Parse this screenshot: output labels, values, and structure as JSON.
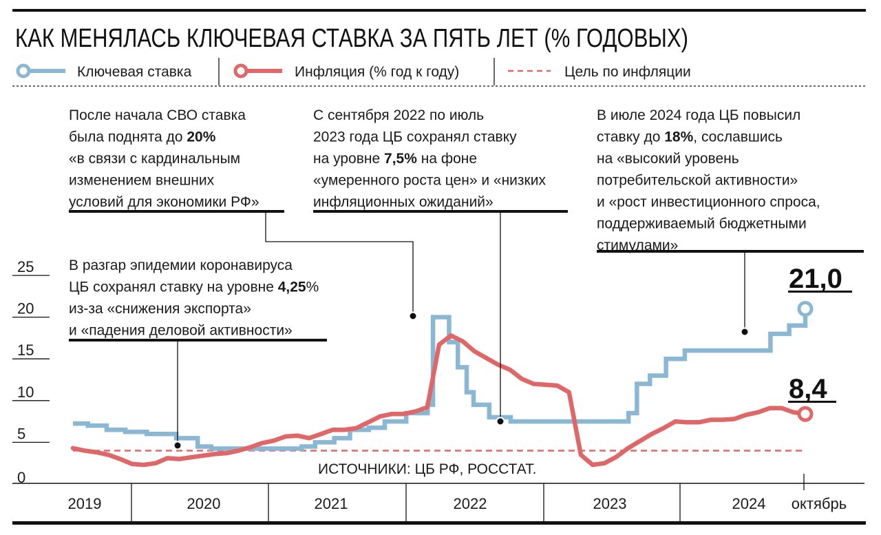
{
  "chart_data": {
    "type": "line",
    "title": "КАК МЕНЯЛАСЬ КЛЮЧЕВАЯ СТАВКА ЗА ПЯТЬ ЛЕТ (% ГОДОВЫХ)",
    "xlabel": "",
    "ylabel": "% годовых",
    "ylim": [
      0,
      25
    ],
    "xlim": [
      "2019-08-01",
      "2024-10-28"
    ],
    "y_ticks": [
      "25",
      "20",
      "15",
      "10",
      "5",
      "0"
    ],
    "x_ticks": [
      "2019",
      "2020",
      "2021",
      "2022",
      "2023",
      "2024",
      "октябрь"
    ],
    "legend": {
      "placement": "top",
      "items": [
        {
          "label": "Ключевая ставка",
          "color": "#8ab8d4"
        },
        {
          "label": "Инфляция (% год к году)",
          "color": "#e06767"
        },
        {
          "label": "Цель по инфляции",
          "color": "#e06767"
        }
      ]
    },
    "series": [
      {
        "name": "Ключевая ставка",
        "kind": "step",
        "color": "#8ab8d4",
        "points": [
          [
            "2019-08-01",
            7.25
          ],
          [
            "2019-09-09",
            7.0
          ],
          [
            "2019-10-28",
            6.5
          ],
          [
            "2019-12-16",
            6.25
          ],
          [
            "2020-02-10",
            6.0
          ],
          [
            "2020-04-27",
            5.5
          ],
          [
            "2020-06-22",
            4.5
          ],
          [
            "2020-07-27",
            4.25
          ],
          [
            "2021-03-22",
            4.5
          ],
          [
            "2021-04-26",
            5.0
          ],
          [
            "2021-06-15",
            5.5
          ],
          [
            "2021-07-26",
            6.5
          ],
          [
            "2021-09-13",
            6.75
          ],
          [
            "2021-10-25",
            7.5
          ],
          [
            "2021-12-20",
            8.5
          ],
          [
            "2022-02-14",
            9.5
          ],
          [
            "2022-02-28",
            20.0
          ],
          [
            "2022-04-11",
            17.0
          ],
          [
            "2022-05-04",
            14.0
          ],
          [
            "2022-05-27",
            11.0
          ],
          [
            "2022-06-14",
            9.5
          ],
          [
            "2022-07-25",
            8.0
          ],
          [
            "2022-09-19",
            7.5
          ],
          [
            "2023-07-24",
            8.5
          ],
          [
            "2023-08-15",
            12.0
          ],
          [
            "2023-09-18",
            13.0
          ],
          [
            "2023-10-30",
            15.0
          ],
          [
            "2023-12-18",
            16.0
          ],
          [
            "2024-07-29",
            18.0
          ],
          [
            "2024-09-16",
            19.0
          ],
          [
            "2024-10-28",
            21.0
          ]
        ]
      },
      {
        "name": "Инфляция (% год к году)",
        "kind": "monthly",
        "color": "#e06767",
        "start": "2019-08",
        "end": "2024-10",
        "values": [
          4.3,
          4.0,
          3.8,
          3.5,
          3.0,
          2.4,
          2.3,
          2.5,
          3.1,
          3.0,
          3.2,
          3.4,
          3.6,
          3.7,
          4.0,
          4.4,
          4.9,
          5.2,
          5.7,
          5.8,
          5.5,
          6.0,
          6.5,
          6.5,
          6.7,
          7.4,
          8.1,
          8.4,
          8.4,
          8.7,
          9.2,
          16.7,
          17.8,
          17.1,
          15.9,
          15.1,
          14.3,
          13.7,
          12.6,
          12.0,
          11.9,
          11.8,
          11.0,
          3.5,
          2.3,
          2.5,
          3.25,
          4.3,
          5.15,
          6.0,
          6.7,
          7.5,
          7.4,
          7.4,
          7.7,
          7.7,
          7.8,
          8.3,
          8.6,
          9.1,
          9.1,
          8.6,
          8.4
        ]
      },
      {
        "name": "Цель по инфляции",
        "kind": "constant",
        "color": "#e06767",
        "value": 4.0
      }
    ],
    "end_labels": {
      "key_rate": "21,0",
      "inflation": "8,4"
    },
    "annotations": [
      {
        "lines": [
          [
            {
              "t": "После начала СВО ставка"
            }
          ],
          [
            {
              "t": "была поднята до "
            },
            {
              "t": "20%",
              "b": true
            }
          ],
          [
            {
              "t": "«в связи с кардинальным"
            }
          ],
          [
            {
              "t": "изменением внешних"
            }
          ],
          [
            {
              "t": "условий для экономики РФ»"
            }
          ]
        ]
      },
      {
        "lines": [
          [
            {
              "t": "С сентября 2022 по июль"
            }
          ],
          [
            {
              "t": "2023 года ЦБ сохранял ставку"
            }
          ],
          [
            {
              "t": "на уровне "
            },
            {
              "t": "7,5%",
              "b": true
            },
            {
              "t": " на фоне"
            }
          ],
          [
            {
              "t": "«умеренного роста цен» и «низких"
            }
          ],
          [
            {
              "t": "инфляционных ожиданий»"
            }
          ]
        ]
      },
      {
        "lines": [
          [
            {
              "t": "В июле 2024 года ЦБ повысил"
            }
          ],
          [
            {
              "t": "ставку до "
            },
            {
              "t": "18%",
              "b": true
            },
            {
              "t": ", сославшись"
            }
          ],
          [
            {
              "t": "на «высокий уровень"
            }
          ],
          [
            {
              "t": "потребительской активности»"
            }
          ],
          [
            {
              "t": "и «рост инвестиционного спроса,"
            }
          ],
          [
            {
              "t": "поддерживаемый бюджетными"
            }
          ],
          [
            {
              "t": "стимулами»"
            }
          ]
        ]
      },
      {
        "lines": [
          [
            {
              "t": "В разгар эпидемии коронавируса"
            }
          ],
          [
            {
              "t": "ЦБ сохранял ставку на уровне "
            },
            {
              "t": "4,25",
              "b": true
            },
            {
              "t": "%"
            }
          ],
          [
            {
              "t": "из-за «снижения экспорта»"
            }
          ],
          [
            {
              "t": "и «падения деловой активности»"
            }
          ]
        ]
      }
    ],
    "source": "ИСТОЧНИКИ:  ЦБ РФ, РОССТАТ."
  }
}
